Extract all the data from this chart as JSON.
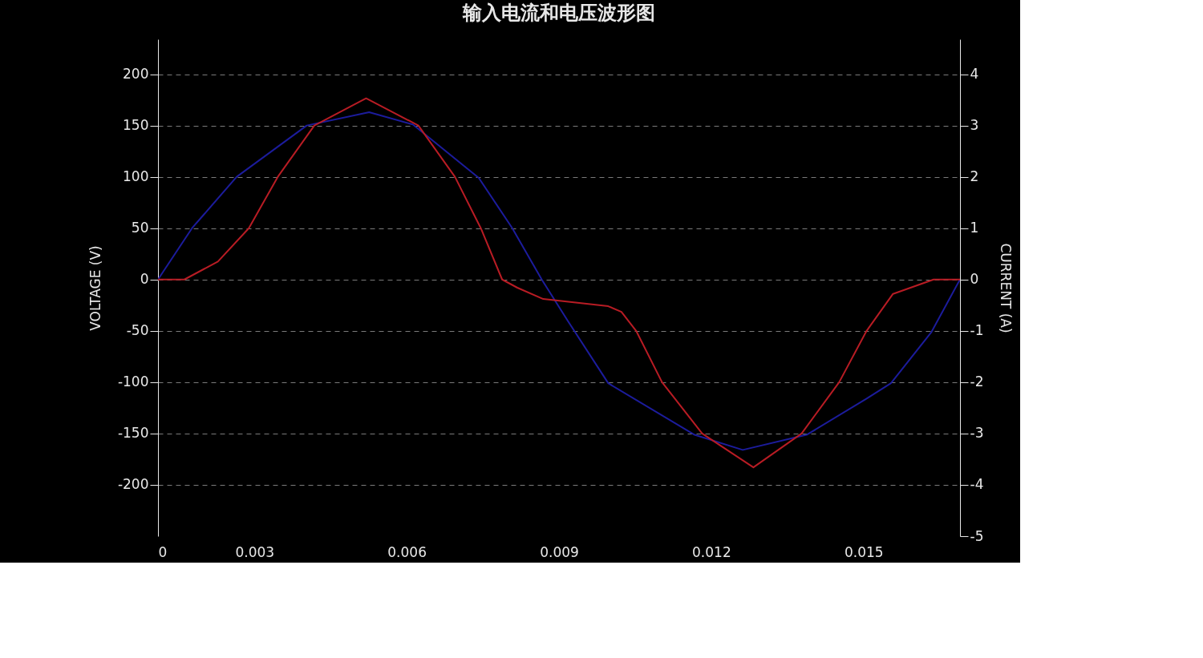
{
  "chart_data": {
    "type": "line",
    "title": "输入电流和电压波形图",
    "xlabel": null,
    "ylabel": "VOLTAGE (V)",
    "y2label": "CURRENT (A)",
    "xlim": [
      0.0011,
      0.0169
    ],
    "xticks": [
      {
        "value": 0.0011,
        "label": "0"
      },
      0.003,
      0.006,
      0.009,
      0.012,
      0.015
    ],
    "ylim": [
      -250,
      234
    ],
    "yticks": [
      -200,
      -150,
      -100,
      -50,
      0,
      50,
      100,
      150,
      200
    ],
    "y2lim": [
      -5,
      4.68
    ],
    "y2ticks": [
      -5,
      -4,
      -3,
      -2,
      -1,
      0,
      1,
      2,
      3,
      4
    ],
    "grid": "y",
    "marker": "none",
    "line_style": "solid",
    "series": [
      {
        "color": "#1c1c9c",
        "x": [
          0.0011,
          0.00177,
          0.00265,
          0.00403,
          0.00526,
          0.00612,
          0.00742,
          0.00808,
          0.00866,
          0.00917,
          0.00997,
          0.01166,
          0.01262,
          0.01389,
          0.01506,
          0.01554,
          0.01634,
          0.0169
        ],
        "values": [
          0,
          50,
          100,
          150,
          163,
          151,
          99,
          50,
          0,
          -40,
          -101,
          -151,
          -166,
          -151,
          -116,
          -101,
          -51,
          0
        ]
      },
      {
        "color": "#b81c24",
        "axis": "y2",
        "x": [
          0.0011,
          0.00162,
          0.00228,
          0.00289,
          0.00346,
          0.00418,
          0.0052,
          0.00623,
          0.00695,
          0.00746,
          0.00788,
          0.00818,
          0.00869,
          0.00997,
          0.01023,
          0.01052,
          0.01103,
          0.01182,
          0.01283,
          0.01378,
          0.01452,
          0.01506,
          0.01558,
          0.01638,
          0.0169
        ],
        "values": [
          0,
          0,
          0.35,
          1.0,
          2.0,
          3.0,
          3.53,
          3.0,
          2.0,
          1.0,
          0,
          -0.16,
          -0.38,
          -0.52,
          -0.63,
          -1.0,
          -2.0,
          -3.0,
          -3.66,
          -3.0,
          -2.0,
          -1.0,
          -0.28,
          0,
          0
        ]
      }
    ]
  }
}
